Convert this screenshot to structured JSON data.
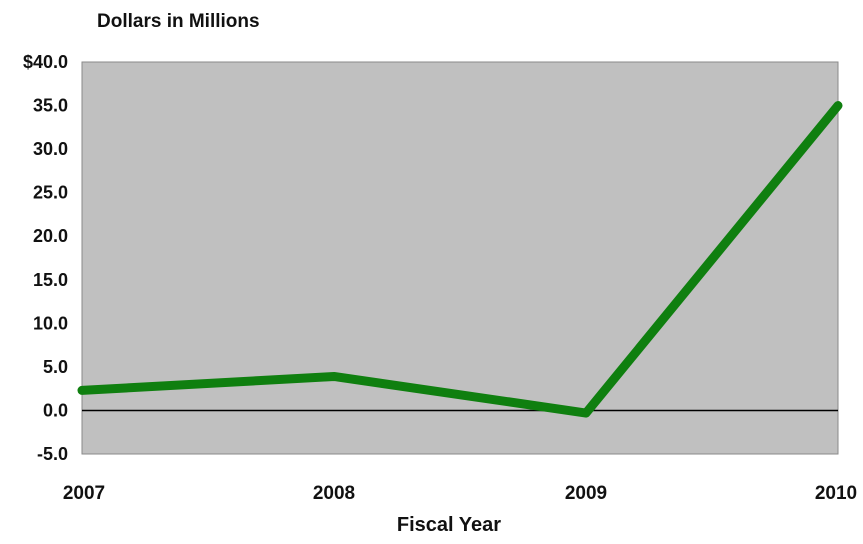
{
  "chart_data": {
    "type": "line",
    "title": "",
    "subtitle": "Dollars in Millions",
    "xlabel": "Fiscal Year",
    "ylabel": "",
    "categories": [
      "2007",
      "2008",
      "2009",
      "2010"
    ],
    "series": [
      {
        "values": [
          2.3,
          3.9,
          -0.3,
          35.0
        ]
      }
    ],
    "ylim": [
      -5,
      40
    ],
    "yticks": [
      40,
      35,
      30,
      25,
      20,
      15,
      10,
      5,
      0,
      -5
    ],
    "ytick_labels": [
      "$40.0",
      "35.0",
      "30.0",
      "25.0",
      "20.0",
      "15.0",
      "10.0",
      "5.0",
      "0.0",
      "-5.0"
    ],
    "zero_line": true,
    "grid": false,
    "legend": "none",
    "colors": {
      "line": "#0f7f0f",
      "plot_background": "#c0c0c0",
      "zero_line": "#000000"
    }
  }
}
